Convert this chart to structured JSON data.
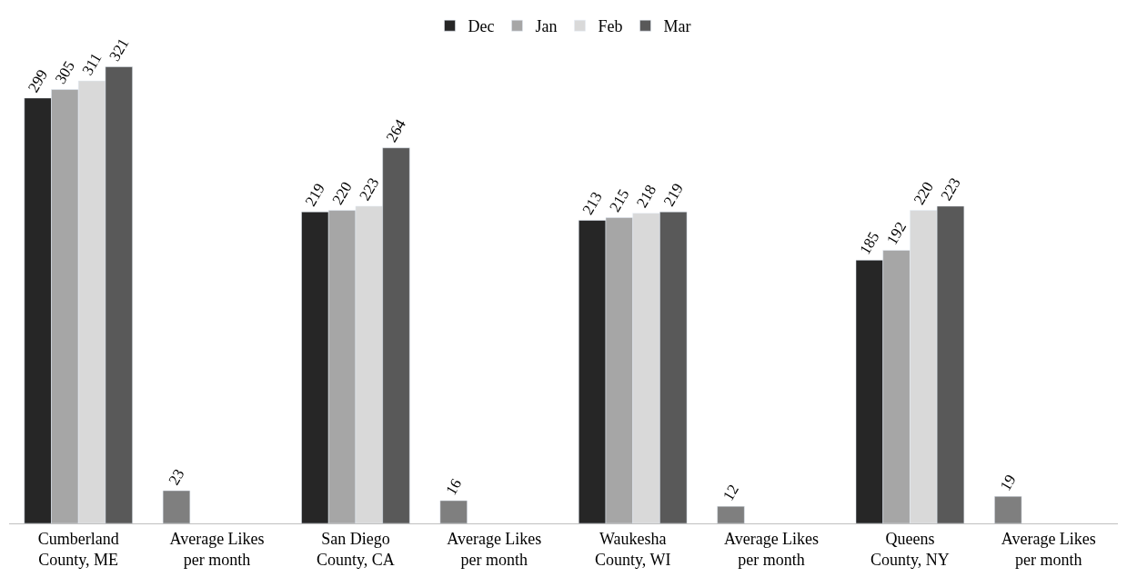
{
  "chart_data": {
    "type": "bar",
    "categories": [
      "Cumberland\nCounty, ME",
      "Average Likes\nper month",
      "San Diego\nCounty, CA",
      "Average Likes\nper month",
      "Waukesha\nCounty, WI",
      "Average Likes\nper month",
      "Queens\nCounty, NY",
      "Average Likes\nper month"
    ],
    "series": [
      {
        "name": "Dec",
        "color": "#262626",
        "colors": [
          "#262626",
          "#7f7f7f",
          "#262626",
          "#7f7f7f",
          "#262626",
          "#7f7f7f",
          "#262626",
          "#7f7f7f"
        ],
        "values": [
          299,
          23,
          219,
          16,
          213,
          12,
          185,
          19
        ]
      },
      {
        "name": "Jan",
        "color": "#a6a6a6",
        "values": [
          305,
          null,
          220,
          null,
          215,
          null,
          192,
          null
        ]
      },
      {
        "name": "Feb",
        "color": "#d9d9d9",
        "values": [
          311,
          null,
          223,
          null,
          218,
          null,
          220,
          null
        ]
      },
      {
        "name": "Mar",
        "color": "#595959",
        "values": [
          321,
          null,
          264,
          null,
          219,
          null,
          223,
          null
        ]
      }
    ],
    "data_labels": true,
    "legend": "top"
  }
}
